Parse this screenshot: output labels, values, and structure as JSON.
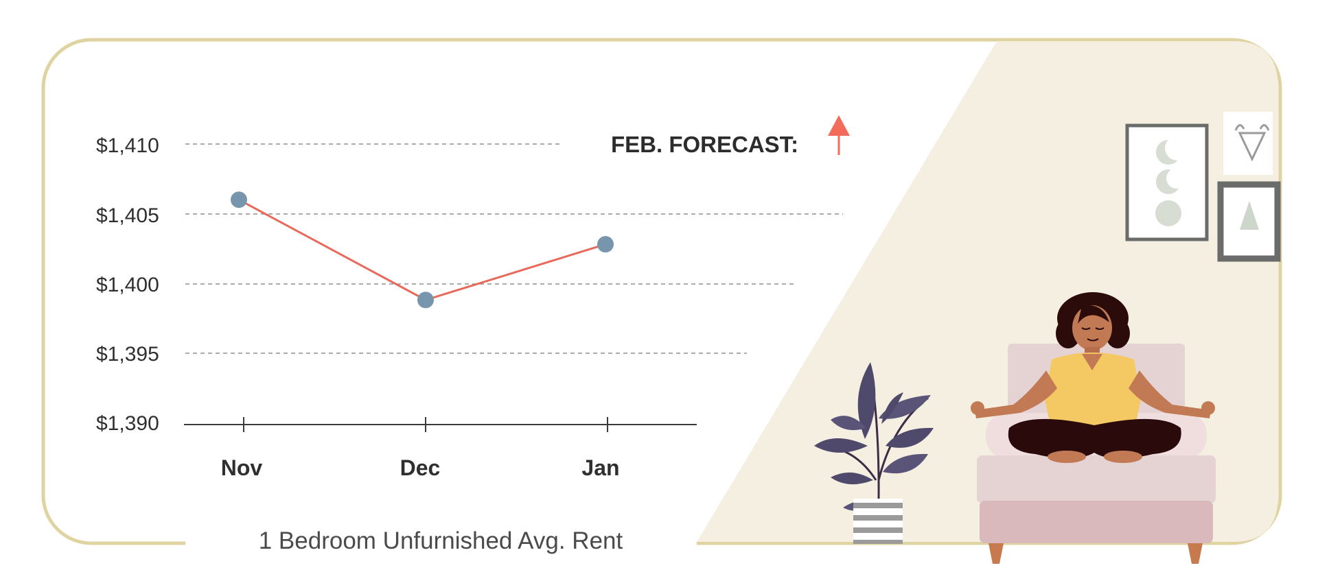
{
  "chart_data": {
    "type": "line",
    "categories": [
      "Nov",
      "Dec",
      "Jan"
    ],
    "series": [
      {
        "name": "",
        "values": [
          1406.0,
          1398.8,
          1402.8
        ]
      }
    ],
    "y_ticks": [
      "$1,410",
      "$1,405",
      "$1,400",
      "$1,395",
      "$1,390"
    ],
    "ylim": [
      1390,
      1410
    ],
    "title": "1 Bedroom Unfurnished Avg. Rent",
    "annotation": "FEB. FORECAST:",
    "forecast_direction": "up",
    "grid": "horizontal dashed",
    "colors": {
      "line": "#e8695a",
      "marker": "#7895ae",
      "arrow": "#f26b5b",
      "frame": "#dfd3a2",
      "room_wall": "#f4efe1"
    }
  }
}
